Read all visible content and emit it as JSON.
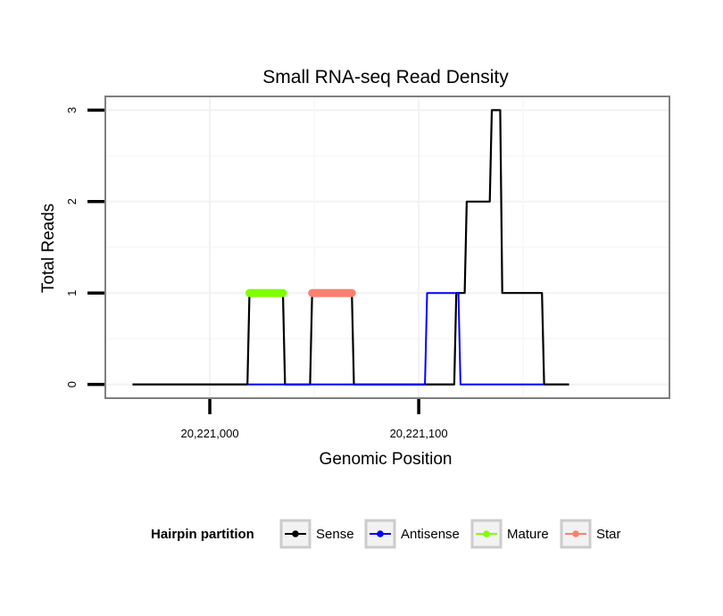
{
  "chart_data": {
    "type": "line",
    "title": "Small RNA-seq Read Density",
    "xlabel": "Genomic Position",
    "ylabel": "Total Reads",
    "xlim": [
      20220950,
      20221220
    ],
    "ylim": [
      -0.15,
      3.15
    ],
    "x_ticks": [
      20221000,
      20221100
    ],
    "x_tick_labels": [
      "20,221,000",
      "20,221,100"
    ],
    "y_ticks": [
      0,
      1,
      2,
      3
    ],
    "y_tick_labels": [
      "0",
      "1",
      "2",
      "3"
    ],
    "x_minor_grid": [
      20220950,
      20221050,
      20221150
    ],
    "legend": {
      "title": "Hairpin partition",
      "position": "bottom",
      "entries": [
        {
          "name": "Sense",
          "color": "#000000"
        },
        {
          "name": "Antisense",
          "color": "#0000ff"
        },
        {
          "name": "Mature",
          "color": "#7fff00"
        },
        {
          "name": "Star",
          "color": "#fa8072"
        }
      ]
    },
    "series": [
      {
        "name": "Sense",
        "color": "#000000",
        "line_width": 2.2,
        "x": [
          20220963,
          20221018,
          20221019,
          20221035,
          20221036,
          20221048,
          20221049,
          20221068,
          20221069,
          20221117,
          20221118,
          20221122,
          20221123,
          20221134,
          20221135,
          20221139,
          20221140,
          20221159,
          20221160,
          20221172
        ],
        "y": [
          0,
          0,
          1,
          1,
          0,
          0,
          1,
          1,
          0,
          0,
          1,
          1,
          2,
          2,
          3,
          3,
          1,
          1,
          0,
          0
        ]
      },
      {
        "name": "Antisense",
        "color": "#0000ff",
        "line_width": 2,
        "x": [
          20221018,
          20221035,
          20221048,
          20221068,
          20221069,
          20221103,
          20221104,
          20221119,
          20221120,
          20221160
        ],
        "y": [
          0,
          0,
          0,
          0,
          0,
          0,
          1,
          1,
          0,
          0
        ]
      },
      {
        "name": "Mature",
        "color": "#7fff00",
        "line_width": 9,
        "x": [
          20221019,
          20221035
        ],
        "y": [
          1,
          1
        ]
      },
      {
        "name": "Star",
        "color": "#fa8072",
        "line_width": 9,
        "x": [
          20221049,
          20221068
        ],
        "y": [
          1,
          1
        ]
      }
    ]
  }
}
